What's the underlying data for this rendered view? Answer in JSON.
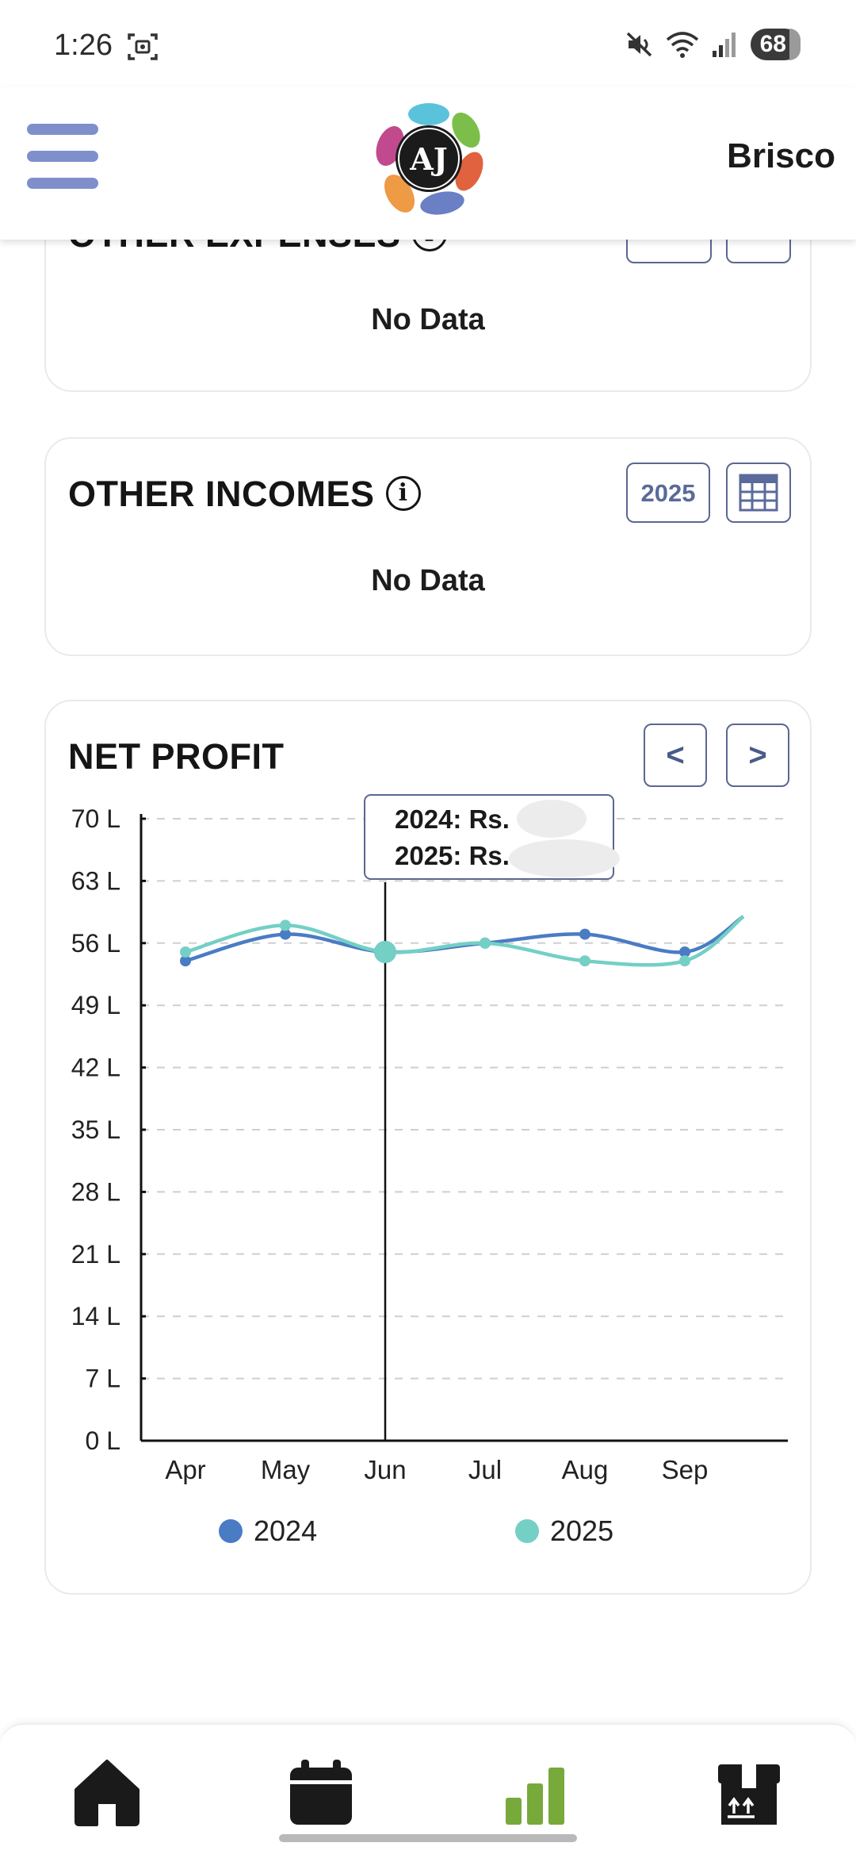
{
  "status_bar": {
    "time": "1:26",
    "battery": "68"
  },
  "header": {
    "username": "Brisco",
    "logo_text": "AJ"
  },
  "other_expenses": {
    "title": "OTHER EXPENSES",
    "no_data": "No Data"
  },
  "other_incomes": {
    "title": "OTHER INCOMES",
    "year_button": "2025",
    "no_data": "No Data"
  },
  "net_profit": {
    "title": "NET PROFIT",
    "prev_label": "<",
    "next_label": ">",
    "tooltip": {
      "line_2024": "2024: Rs.",
      "line_2025": "2025: Rs."
    }
  },
  "chart_data": {
    "type": "line",
    "title": "NET PROFIT",
    "categories": [
      "Apr",
      "May",
      "Jun",
      "Jul",
      "Aug",
      "Sep"
    ],
    "y_ticks": [
      "0 L",
      "7 L",
      "14 L",
      "21 L",
      "28 L",
      "35 L",
      "42 L",
      "49 L",
      "56 L",
      "63 L",
      "70 L"
    ],
    "ylim": [
      0,
      70
    ],
    "grid": true,
    "legend_position": "bottom",
    "highlighted_category": "Jun",
    "series": [
      {
        "name": "2024",
        "color": "#4a7cc4",
        "values": [
          54,
          57,
          55,
          56,
          57,
          55
        ],
        "trailing_value": 59
      },
      {
        "name": "2025",
        "color": "#74cfc5",
        "values": [
          55,
          58,
          55,
          56,
          54,
          54
        ],
        "trailing_value": 59
      }
    ]
  },
  "bottom_nav": {
    "items": [
      {
        "name": "home",
        "active": false
      },
      {
        "name": "calendar",
        "active": false
      },
      {
        "name": "analytics",
        "active": true
      },
      {
        "name": "inventory",
        "active": false
      }
    ],
    "active_color": "#77a93b",
    "inactive_color": "#1a1a1a"
  }
}
